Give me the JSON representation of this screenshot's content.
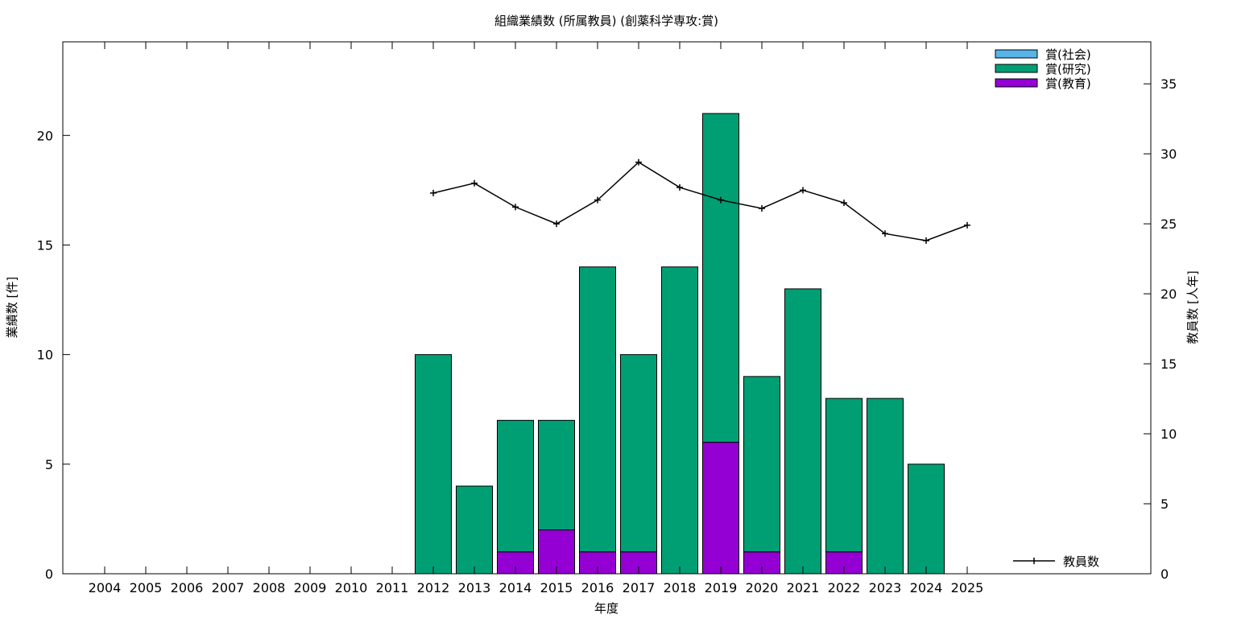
{
  "chart_data": {
    "type": "bar",
    "title": "組織業績数 (所属教員) (創薬科学専攻:賞)",
    "xlabel": "年度",
    "ylabel": "業績数 [件]",
    "y2label": "教員数 [人年]",
    "categories": [
      "2004",
      "2005",
      "2006",
      "2007",
      "2008",
      "2009",
      "2010",
      "2011",
      "2012",
      "2013",
      "2014",
      "2015",
      "2016",
      "2017",
      "2018",
      "2019",
      "2020",
      "2021",
      "2022",
      "2023",
      "2024",
      "2025"
    ],
    "ylim": [
      0,
      24.27
    ],
    "y2lim": [
      0,
      38.0
    ],
    "yticks": [
      0,
      5,
      10,
      15,
      20
    ],
    "y2ticks": [
      0,
      5,
      10,
      15,
      20,
      25,
      30,
      35
    ],
    "stacked": true,
    "series": [
      {
        "name": "賞(社会)",
        "color": "#56b4e9",
        "values": [
          0,
          0,
          0,
          0,
          0,
          0,
          0,
          0,
          0,
          0,
          0,
          0,
          0,
          0,
          0,
          0,
          0,
          0,
          0,
          0,
          0,
          0
        ]
      },
      {
        "name": "賞(研究)",
        "color": "#009e73",
        "values": [
          0,
          0,
          0,
          0,
          0,
          0,
          0,
          0,
          10,
          4,
          6,
          5,
          13,
          9,
          14,
          15,
          8,
          13,
          7,
          8,
          5,
          0
        ]
      },
      {
        "name": "賞(教育)",
        "color": "#9400d3",
        "values": [
          0,
          0,
          0,
          0,
          0,
          0,
          0,
          0,
          0,
          0,
          1,
          2,
          1,
          1,
          0,
          6,
          1,
          0,
          1,
          0,
          0,
          0
        ]
      }
    ],
    "line_series": {
      "name": "教員数",
      "axis": "right",
      "color": "#000000",
      "x": [
        "2012",
        "2013",
        "2014",
        "2015",
        "2016",
        "2017",
        "2018",
        "2019",
        "2020",
        "2021",
        "2022",
        "2023",
        "2024",
        "2025"
      ],
      "values": [
        27.2,
        27.9,
        26.2,
        25.0,
        26.7,
        29.4,
        27.6,
        26.7,
        26.1,
        27.4,
        26.5,
        24.3,
        23.8,
        24.9
      ]
    },
    "legend_position": "top-right",
    "line_legend_position": "bottom-right",
    "grid": false
  }
}
